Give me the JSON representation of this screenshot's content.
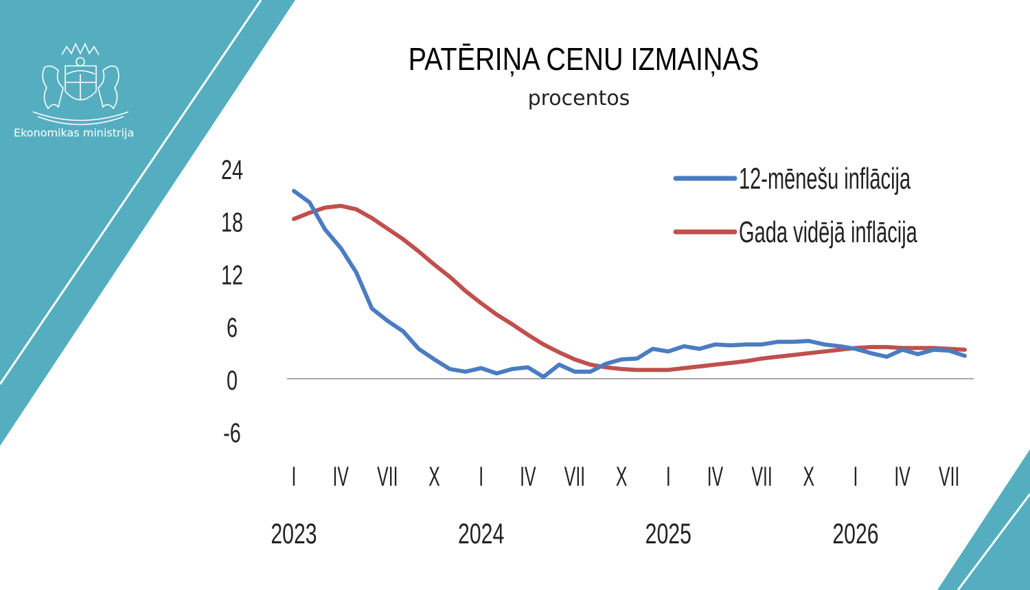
{
  "header": {
    "ministry": "Ekonomikas ministrija"
  },
  "colors": {
    "teal": "#55aebf",
    "series_blue": "#4a7cc2",
    "series_red": "#c0504d",
    "zero_line": "#8c8c8c"
  },
  "logo_icon": "latvia-coat-of-arms-icon",
  "chart_data": {
    "type": "line",
    "title": "PATĒRIŅA CENU IZMAIŅAS",
    "subtitle": "procentos",
    "ylim": [
      -6,
      24
    ],
    "yticks": [
      "24",
      "18",
      "12",
      "6",
      "0",
      "-6"
    ],
    "quarter_labels": [
      "I",
      "IV",
      "VII",
      "X",
      "I",
      "IV",
      "VII",
      "X",
      "I",
      "IV",
      "VII",
      "X",
      "I",
      "IV",
      "VII"
    ],
    "year_labels": [
      "2023",
      "2024",
      "2025",
      "2026"
    ],
    "x_start": "2023-01",
    "x_end": "2026-07",
    "legend": [
      "12-mēnešu inflācija",
      "Gada vidējā inflācija"
    ],
    "legend_position": "top-right",
    "series": [
      {
        "name": "12-mēnešu inflācija",
        "color": "#4a7cc2",
        "values": [
          21.4,
          20.1,
          17.0,
          14.9,
          12.1,
          8.0,
          6.6,
          5.4,
          3.4,
          2.2,
          1.1,
          0.8,
          1.2,
          0.6,
          1.1,
          1.3,
          0.2,
          1.6,
          0.8,
          0.8,
          1.7,
          2.2,
          2.3,
          3.4,
          3.1,
          3.7,
          3.4,
          3.9,
          3.8,
          3.9,
          3.9,
          4.2,
          4.2,
          4.3,
          3.9,
          3.7,
          3.4,
          2.9,
          2.5,
          3.3,
          2.8,
          3.3,
          3.2,
          2.6
        ]
      },
      {
        "name": "Gada vidējā inflācija",
        "color": "#c0504d",
        "values": [
          18.2,
          18.9,
          19.5,
          19.7,
          19.3,
          18.3,
          17.1,
          15.9,
          14.5,
          13.0,
          11.6,
          10.0,
          8.6,
          7.3,
          6.2,
          5.0,
          3.9,
          3.0,
          2.2,
          1.6,
          1.3,
          1.1,
          1.0,
          1.0,
          1.0,
          1.2,
          1.4,
          1.6,
          1.8,
          2.0,
          2.3,
          2.5,
          2.7,
          2.9,
          3.1,
          3.3,
          3.5,
          3.6,
          3.6,
          3.5,
          3.5,
          3.5,
          3.4,
          3.3
        ]
      }
    ]
  }
}
